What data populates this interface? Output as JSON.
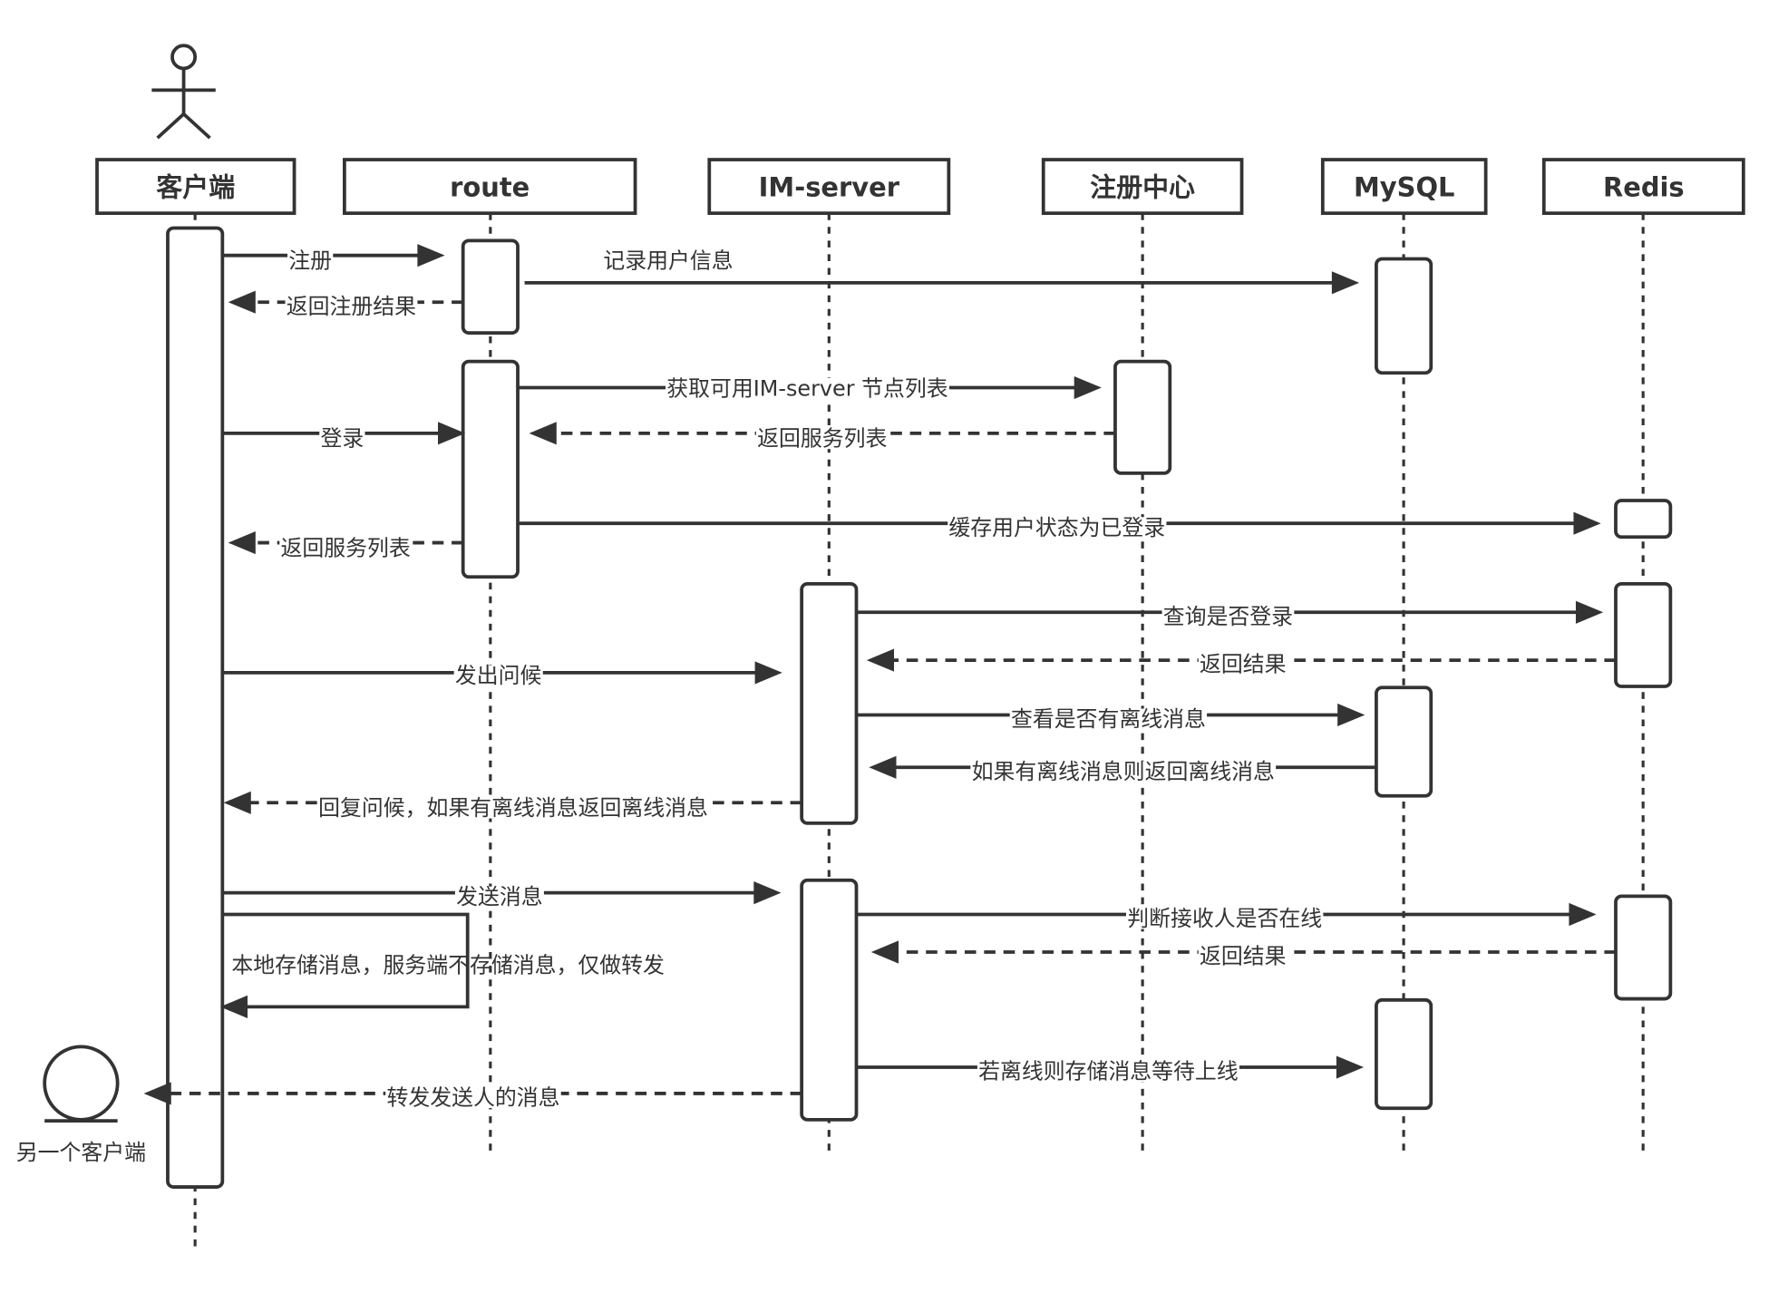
{
  "actor_label": "",
  "participants": [
    {
      "id": "client",
      "name": "客户端"
    },
    {
      "id": "route",
      "name": "route"
    },
    {
      "id": "im",
      "name": "IM-server"
    },
    {
      "id": "registry",
      "name": "注册中心"
    },
    {
      "id": "mysql",
      "name": "MySQL"
    },
    {
      "id": "redis",
      "name": "Redis"
    }
  ],
  "other_client": {
    "name": "另一个客户端"
  },
  "messages": [
    {
      "label": "注册",
      "from": "client",
      "to": "route",
      "style": "solid"
    },
    {
      "label": "记录用户信息",
      "from": "route",
      "to": "mysql",
      "style": "solid"
    },
    {
      "label": "返回注册结果",
      "from": "route",
      "to": "client",
      "style": "dashed"
    },
    {
      "label": "获取可用IM-server 节点列表",
      "from": "route",
      "to": "registry",
      "style": "solid"
    },
    {
      "label": "登录",
      "from": "client",
      "to": "route",
      "style": "solid"
    },
    {
      "label": "返回服务列表",
      "from": "registry",
      "to": "route",
      "style": "dashed"
    },
    {
      "label": "缓存用户状态为已登录",
      "from": "route",
      "to": "redis",
      "style": "solid"
    },
    {
      "label": "返回服务列表",
      "from": "route",
      "to": "client",
      "style": "dashed"
    },
    {
      "label": "查询是否登录",
      "from": "im",
      "to": "redis",
      "style": "solid"
    },
    {
      "label": "返回结果",
      "from": "redis",
      "to": "im",
      "style": "dashed"
    },
    {
      "label": "发出问候",
      "from": "client",
      "to": "im",
      "style": "solid"
    },
    {
      "label": "查看是否有离线消息",
      "from": "im",
      "to": "mysql",
      "style": "solid"
    },
    {
      "label": "如果有离线消息则返回离线消息",
      "from": "mysql",
      "to": "im",
      "style": "solid"
    },
    {
      "label": "回复问候，如果有离线消息返回离线消息",
      "from": "im",
      "to": "client",
      "style": "dashed"
    },
    {
      "label": "发送消息",
      "from": "client",
      "to": "im",
      "style": "solid"
    },
    {
      "label": "判断接收人是否在线",
      "from": "im",
      "to": "redis",
      "style": "solid"
    },
    {
      "label": "返回结果",
      "from": "redis",
      "to": "im",
      "style": "dashed"
    },
    {
      "label": "本地存储消息，服务端不存储消息，仅做转发",
      "from": "client",
      "to": "client",
      "style": "self"
    },
    {
      "label": "若离线则存储消息等待上线",
      "from": "im",
      "to": "mysql",
      "style": "solid"
    },
    {
      "label": "转发发送人的消息",
      "from": "im",
      "to": "other_client",
      "style": "dashed"
    }
  ],
  "colors": {
    "line": "#333333",
    "background": "#ffffff"
  }
}
